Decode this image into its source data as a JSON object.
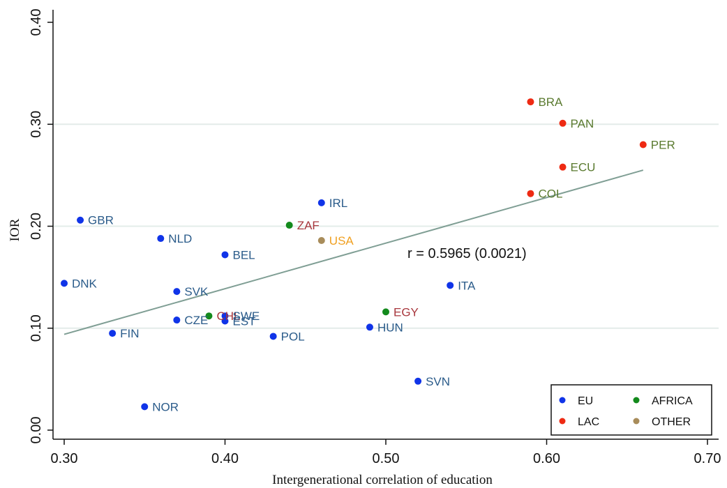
{
  "chart_data": {
    "type": "scatter",
    "title": "",
    "xlabel": "Intergenerational correlation of education",
    "ylabel": "IOR",
    "xlim": [
      0.3,
      0.7
    ],
    "ylim": [
      0.0,
      0.4
    ],
    "xticks": [
      "0.30",
      "0.40",
      "0.50",
      "0.60",
      "0.70"
    ],
    "yticks": [
      "0.00",
      "0.10",
      "0.20",
      "0.30",
      "0.40"
    ],
    "gridlines": "horizontal",
    "groups": [
      {
        "name": "EU",
        "color": "#1034e8"
      },
      {
        "name": "LAC",
        "color": "#ee2a13"
      },
      {
        "name": "AFRICA",
        "color": "#138a1c"
      },
      {
        "name": "OTHER",
        "color": "#a88c5a"
      }
    ],
    "points": [
      {
        "label": "BRA",
        "x": 0.59,
        "y": 0.322,
        "group": "LAC",
        "label_color": "#5a7a2f"
      },
      {
        "label": "PAN",
        "x": 0.61,
        "y": 0.301,
        "group": "LAC",
        "label_color": "#5a7a2f"
      },
      {
        "label": "PER",
        "x": 0.66,
        "y": 0.28,
        "group": "LAC",
        "label_color": "#5a7a2f"
      },
      {
        "label": "ECU",
        "x": 0.61,
        "y": 0.258,
        "group": "LAC",
        "label_color": "#5a7a2f"
      },
      {
        "label": "COL",
        "x": 0.59,
        "y": 0.232,
        "group": "LAC",
        "label_color": "#5a7a2f"
      },
      {
        "label": "IRL",
        "x": 0.46,
        "y": 0.223,
        "group": "EU",
        "label_color": "#2a5b8a"
      },
      {
        "label": "GBR",
        "x": 0.31,
        "y": 0.206,
        "group": "EU",
        "label_color": "#2a5b8a"
      },
      {
        "label": "ZAF",
        "x": 0.44,
        "y": 0.201,
        "group": "AFRICA",
        "label_color": "#a8373d"
      },
      {
        "label": "NLD",
        "x": 0.36,
        "y": 0.188,
        "group": "EU",
        "label_color": "#2a5b8a"
      },
      {
        "label": "USA",
        "x": 0.46,
        "y": 0.186,
        "group": "OTHER",
        "label_color": "#f0a020"
      },
      {
        "label": "BEL",
        "x": 0.4,
        "y": 0.172,
        "group": "EU",
        "label_color": "#2a5b8a"
      },
      {
        "label": "DNK",
        "x": 0.3,
        "y": 0.144,
        "group": "EU",
        "label_color": "#2a5b8a"
      },
      {
        "label": "ITA",
        "x": 0.54,
        "y": 0.142,
        "group": "EU",
        "label_color": "#2a5b8a"
      },
      {
        "label": "SVK",
        "x": 0.37,
        "y": 0.136,
        "group": "EU",
        "label_color": "#2a5b8a"
      },
      {
        "label": "EGY",
        "x": 0.5,
        "y": 0.116,
        "group": "AFRICA",
        "label_color": "#a8373d"
      },
      {
        "label": "CHL",
        "x": 0.39,
        "y": 0.112,
        "group": "AFRICA",
        "label_color": "#a8373d"
      },
      {
        "label": "SWE",
        "x": 0.4,
        "y": 0.112,
        "group": "EU",
        "label_color": "#2a5b8a"
      },
      {
        "label": "CZE",
        "x": 0.37,
        "y": 0.108,
        "group": "EU",
        "label_color": "#2a5b8a"
      },
      {
        "label": "EST",
        "x": 0.4,
        "y": 0.107,
        "group": "EU",
        "label_color": "#2a5b8a"
      },
      {
        "label": "HUN",
        "x": 0.49,
        "y": 0.101,
        "group": "EU",
        "label_color": "#2a5b8a"
      },
      {
        "label": "FIN",
        "x": 0.33,
        "y": 0.095,
        "group": "EU",
        "label_color": "#2a5b8a"
      },
      {
        "label": "POL",
        "x": 0.43,
        "y": 0.092,
        "group": "EU",
        "label_color": "#2a5b8a"
      },
      {
        "label": "SVN",
        "x": 0.52,
        "y": 0.048,
        "group": "EU",
        "label_color": "#2a5b8a"
      },
      {
        "label": "NOR",
        "x": 0.35,
        "y": 0.023,
        "group": "EU",
        "label_color": "#2a5b8a"
      }
    ],
    "fit_line": {
      "x": [
        0.3,
        0.66
      ],
      "y": [
        0.094,
        0.255
      ],
      "color": "#7f9e94"
    },
    "annotation": "r =  0.5965  (0.0021)",
    "legend": {
      "position": "bottom-right",
      "columns": 2,
      "entries": [
        "EU",
        "AFRICA",
        "LAC",
        "OTHER"
      ]
    }
  }
}
